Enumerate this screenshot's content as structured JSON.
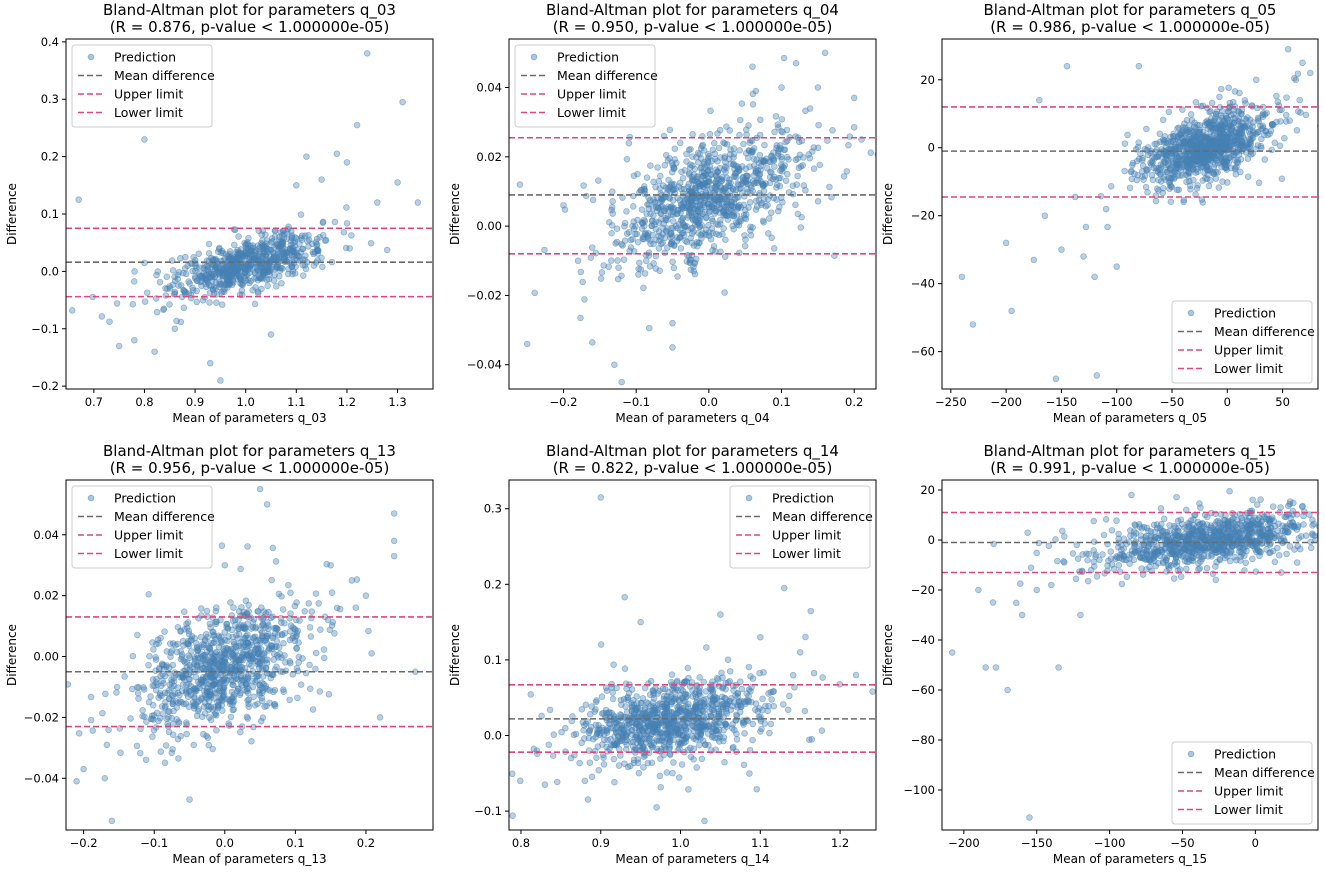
{
  "chart_data": [
    {
      "type": "scatter",
      "title": "Bland-Altman plot for parameters q_03",
      "subtitle": "(R = 0.876, p-value < 1.000000e-05)",
      "xlabel": "Mean of parameters q_03",
      "ylabel": "Difference",
      "xlim": [
        0.645,
        1.37
      ],
      "ylim": [
        -0.205,
        0.405
      ],
      "xticks": [
        0.7,
        0.8,
        0.9,
        1.0,
        1.1,
        1.2,
        1.3
      ],
      "xtick_labels": [
        "0.7",
        "0.8",
        "0.9",
        "1.0",
        "1.1",
        "1.2",
        "1.3"
      ],
      "yticks": [
        -0.2,
        -0.1,
        0.0,
        0.1,
        0.2,
        0.3,
        0.4
      ],
      "ytick_labels": [
        "−0.2",
        "−0.1",
        "0.0",
        "0.1",
        "0.2",
        "0.3",
        "0.4"
      ],
      "mean_difference": 0.016,
      "upper_limit": 0.075,
      "lower_limit": -0.044,
      "legend_position": "upper left",
      "legend": [
        "Prediction",
        "Mean difference",
        "Upper limit",
        "Lower limit"
      ],
      "cloud": {
        "cx": 1.0,
        "cy": 0.01,
        "sx": 0.07,
        "sy": 0.028,
        "corr": 0.65,
        "n": 700
      },
      "points": [
        [
          0.67,
          0.125
        ],
        [
          0.8,
          0.23
        ],
        [
          1.24,
          0.38
        ],
        [
          1.31,
          0.295
        ],
        [
          1.3,
          0.155
        ],
        [
          1.34,
          0.12
        ],
        [
          1.22,
          0.255
        ],
        [
          1.18,
          0.205
        ],
        [
          1.26,
          0.12
        ],
        [
          1.2,
          0.19
        ],
        [
          0.95,
          -0.19
        ],
        [
          0.93,
          -0.16
        ],
        [
          0.75,
          -0.13
        ],
        [
          0.78,
          -0.12
        ],
        [
          0.82,
          -0.14
        ],
        [
          1.15,
          0.16
        ],
        [
          1.12,
          0.2
        ],
        [
          1.1,
          0.15
        ],
        [
          0.86,
          -0.1
        ],
        [
          1.05,
          -0.11
        ]
      ]
    },
    {
      "type": "scatter",
      "title": "Bland-Altman plot for parameters q_04",
      "subtitle": "(R = 0.950, p-value < 1.000000e-05)",
      "xlabel": "Mean of parameters q_04",
      "ylabel": "Difference",
      "xlim": [
        -0.275,
        0.23
      ],
      "ylim": [
        -0.047,
        0.054
      ],
      "xticks": [
        -0.2,
        -0.1,
        0.0,
        0.1,
        0.2
      ],
      "xtick_labels": [
        "−0.2",
        "−0.1",
        "0.0",
        "0.1",
        "0.2"
      ],
      "yticks": [
        -0.04,
        -0.02,
        0.0,
        0.02,
        0.04
      ],
      "ytick_labels": [
        "−0.04",
        "−0.02",
        "0.00",
        "0.02",
        "0.04"
      ],
      "mean_difference": 0.009,
      "upper_limit": 0.0255,
      "lower_limit": -0.008,
      "legend_position": "upper left",
      "legend": [
        "Prediction",
        "Mean difference",
        "Upper limit",
        "Lower limit"
      ],
      "cloud": {
        "cx": 0.0,
        "cy": 0.008,
        "sx": 0.06,
        "sy": 0.009,
        "corr": 0.55,
        "n": 950
      },
      "points": [
        [
          -0.25,
          -0.034
        ],
        [
          -0.13,
          -0.04
        ],
        [
          -0.12,
          -0.045
        ],
        [
          0.16,
          0.05
        ],
        [
          0.2,
          0.037
        ],
        [
          0.21,
          0.025
        ],
        [
          -0.26,
          0.012
        ],
        [
          -0.05,
          -0.035
        ],
        [
          0.12,
          0.047
        ],
        [
          0.06,
          0.046
        ],
        [
          -0.2,
          0.006
        ],
        [
          0.15,
          0.04
        ],
        [
          -0.05,
          -0.028
        ],
        [
          0.1,
          0.04
        ],
        [
          -0.18,
          -0.01
        ]
      ]
    },
    {
      "type": "scatter",
      "title": "Bland-Altman plot for parameters q_05",
      "subtitle": "(R = 0.986, p-value < 1.000000e-05)",
      "xlabel": "Mean of parameters q_05",
      "ylabel": "Difference",
      "xlim": [
        -258,
        82
      ],
      "ylim": [
        -71,
        32
      ],
      "xticks": [
        -250,
        -200,
        -150,
        -100,
        -50,
        0,
        50
      ],
      "xtick_labels": [
        "−250",
        "−200",
        "−150",
        "−100",
        "−50",
        "0",
        "50"
      ],
      "yticks": [
        -60,
        -40,
        -20,
        0,
        20
      ],
      "ytick_labels": [
        "−60",
        "−40",
        "−20",
        "0",
        "20"
      ],
      "mean_difference": -1.0,
      "upper_limit": 12.0,
      "lower_limit": -14.5,
      "legend_position": "lower right",
      "legend": [
        "Prediction",
        "Mean difference",
        "Upper limit",
        "Lower limit"
      ],
      "cloud": {
        "cx": -20,
        "cy": 0.0,
        "sx": 28,
        "sy": 5.5,
        "corr": 0.55,
        "n": 950
      },
      "points": [
        [
          -240,
          -38
        ],
        [
          -230,
          -52
        ],
        [
          -195,
          -48
        ],
        [
          -155,
          -68
        ],
        [
          -118,
          -67
        ],
        [
          -175,
          -33
        ],
        [
          -150,
          -30
        ],
        [
          -130,
          -32
        ],
        [
          -145,
          24
        ],
        [
          -80,
          24
        ],
        [
          55,
          29
        ],
        [
          68,
          25
        ],
        [
          62,
          20
        ],
        [
          75,
          22
        ],
        [
          -200,
          -28
        ],
        [
          -120,
          -38
        ],
        [
          -100,
          -35
        ],
        [
          -165,
          -20
        ],
        [
          -170,
          14
        ]
      ]
    },
    {
      "type": "scatter",
      "title": "Bland-Altman plot for parameters q_13",
      "subtitle": "(R = 0.956, p-value < 1.000000e-05)",
      "xlabel": "Mean of parameters q_13",
      "ylabel": "Difference",
      "xlim": [
        -0.225,
        0.295
      ],
      "ylim": [
        -0.057,
        0.058
      ],
      "xticks": [
        -0.2,
        -0.1,
        0.0,
        0.1,
        0.2
      ],
      "xtick_labels": [
        "−0.2",
        "−0.1",
        "0.0",
        "0.1",
        "0.2"
      ],
      "yticks": [
        -0.04,
        -0.02,
        0.0,
        0.02,
        0.04
      ],
      "ytick_labels": [
        "−0.04",
        "−0.02",
        "0.00",
        "0.02",
        "0.04"
      ],
      "mean_difference": -0.005,
      "upper_limit": 0.013,
      "lower_limit": -0.023,
      "legend_position": "upper left",
      "legend": [
        "Prediction",
        "Mean difference",
        "Upper limit",
        "Lower limit"
      ],
      "cloud": {
        "cx": 0.0,
        "cy": -0.004,
        "sx": 0.06,
        "sy": 0.01,
        "corr": 0.5,
        "n": 950
      },
      "points": [
        [
          0.05,
          0.055
        ],
        [
          0.06,
          0.05
        ],
        [
          0.24,
          0.047
        ],
        [
          0.24,
          0.038
        ],
        [
          0.24,
          0.033
        ],
        [
          0.27,
          -0.005
        ],
        [
          0.22,
          -0.02
        ],
        [
          -0.16,
          -0.054
        ],
        [
          -0.2,
          -0.037
        ],
        [
          -0.05,
          -0.047
        ],
        [
          0.2,
          0.02
        ],
        [
          0.18,
          0.025
        ],
        [
          -0.17,
          -0.04
        ],
        [
          0.0,
          0.03
        ],
        [
          0.15,
          0.03
        ]
      ]
    },
    {
      "type": "scatter",
      "title": "Bland-Altman plot for parameters q_14",
      "subtitle": "(R = 0.822, p-value < 1.000000e-05)",
      "xlabel": "Mean of parameters q_14",
      "ylabel": "Difference",
      "xlim": [
        0.785,
        1.245
      ],
      "ylim": [
        -0.125,
        0.338
      ],
      "xticks": [
        0.8,
        0.9,
        1.0,
        1.1,
        1.2
      ],
      "xtick_labels": [
        "0.8",
        "0.9",
        "1.0",
        "1.1",
        "1.2"
      ],
      "yticks": [
        -0.1,
        0.0,
        0.1,
        0.2,
        0.3
      ],
      "ytick_labels": [
        "−0.1",
        "0.0",
        "0.1",
        "0.2",
        "0.3"
      ],
      "mean_difference": 0.022,
      "upper_limit": 0.067,
      "lower_limit": -0.022,
      "legend_position": "upper right",
      "legend": [
        "Prediction",
        "Mean difference",
        "Upper limit",
        "Lower limit"
      ],
      "cloud": {
        "cx": 0.99,
        "cy": 0.02,
        "sx": 0.055,
        "sy": 0.026,
        "corr": 0.35,
        "n": 950
      },
      "points": [
        [
          0.9,
          0.315
        ],
        [
          1.13,
          0.195
        ],
        [
          0.93,
          0.183
        ],
        [
          1.22,
          0.08
        ],
        [
          0.83,
          -0.065
        ],
        [
          1.03,
          -0.113
        ],
        [
          0.97,
          -0.095
        ],
        [
          1.15,
          0.11
        ],
        [
          0.95,
          0.15
        ],
        [
          1.1,
          0.13
        ],
        [
          0.88,
          -0.06
        ],
        [
          1.05,
          0.16
        ],
        [
          0.82,
          -0.02
        ]
      ]
    },
    {
      "type": "scatter",
      "title": "Bland-Altman plot for parameters q_15",
      "subtitle": "(R = 0.991, p-value < 1.000000e-05)",
      "xlabel": "Mean of parameters q_15",
      "ylabel": "Difference",
      "xlim": [
        -215,
        43
      ],
      "ylim": [
        -116,
        24
      ],
      "xticks": [
        -200,
        -150,
        -100,
        -50,
        0
      ],
      "xtick_labels": [
        "−200",
        "−150",
        "−100",
        "−50",
        "0"
      ],
      "yticks": [
        -100,
        -80,
        -60,
        -40,
        -20,
        0,
        20
      ],
      "ytick_labels": [
        "−100",
        "−80",
        "−60",
        "−40",
        "−20",
        "0",
        "20"
      ],
      "mean_difference": -1.0,
      "upper_limit": 11.0,
      "lower_limit": -13.0,
      "legend_position": "lower right",
      "legend": [
        "Prediction",
        "Mean difference",
        "Upper limit",
        "Lower limit"
      ],
      "cloud": {
        "cx": -30,
        "cy": 0.0,
        "sx": 38,
        "sy": 5.5,
        "corr": 0.55,
        "n": 950
      },
      "points": [
        [
          -208,
          -45
        ],
        [
          -185,
          -51
        ],
        [
          -178,
          -51
        ],
        [
          -170,
          -60
        ],
        [
          -135,
          -51
        ],
        [
          -155,
          -111
        ],
        [
          -160,
          -30
        ],
        [
          -180,
          -25
        ],
        [
          -150,
          -20
        ],
        [
          -120,
          -30
        ],
        [
          -85,
          18
        ],
        [
          -190,
          -20
        ],
        [
          -140,
          -18
        ]
      ]
    }
  ]
}
